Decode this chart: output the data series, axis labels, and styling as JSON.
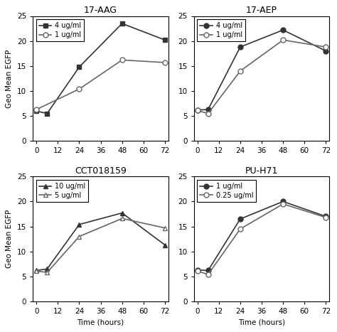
{
  "panels": [
    {
      "title": "17-AAG",
      "x": [
        0,
        6,
        24,
        48,
        72
      ],
      "series": [
        {
          "label": "4 ug/ml",
          "y": [
            6.0,
            5.5,
            14.8,
            23.5,
            20.2
          ],
          "marker": "s",
          "filled": true,
          "color": "#333333"
        },
        {
          "label": "1 ug/ml",
          "y": [
            6.3,
            null,
            10.4,
            16.2,
            15.7
          ],
          "marker": "o",
          "filled": false,
          "color": "#666666"
        }
      ]
    },
    {
      "title": "17-AEP",
      "x": [
        0,
        6,
        24,
        48,
        72
      ],
      "series": [
        {
          "label": "4 ug/ml",
          "y": [
            6.2,
            6.3,
            18.8,
            22.2,
            18.0
          ],
          "marker": "o",
          "filled": true,
          "color": "#333333"
        },
        {
          "label": "1 ug/ml",
          "y": [
            6.1,
            5.5,
            14.0,
            20.2,
            18.8
          ],
          "marker": "o",
          "filled": false,
          "color": "#666666"
        }
      ]
    },
    {
      "title": "CCT018159",
      "x": [
        0,
        6,
        24,
        48,
        72
      ],
      "series": [
        {
          "label": "10 ug/ml",
          "y": [
            6.2,
            6.5,
            15.4,
            17.7,
            11.3
          ],
          "marker": "^",
          "filled": true,
          "color": "#333333"
        },
        {
          "label": "5 ug/ml",
          "y": [
            6.1,
            5.8,
            13.0,
            16.6,
            14.7
          ],
          "marker": "^",
          "filled": false,
          "color": "#666666"
        }
      ]
    },
    {
      "title": "PU-H71",
      "x": [
        0,
        6,
        24,
        48,
        72
      ],
      "series": [
        {
          "label": "1 ug/ml",
          "y": [
            6.3,
            6.2,
            16.5,
            20.0,
            17.0
          ],
          "marker": "o",
          "filled": true,
          "color": "#333333"
        },
        {
          "label": "0.25 ug/ml",
          "y": [
            6.1,
            5.4,
            14.5,
            19.5,
            16.8
          ],
          "marker": "o",
          "filled": false,
          "color": "#666666"
        }
      ]
    }
  ],
  "ylim": [
    0,
    25
  ],
  "yticks": [
    0,
    5,
    10,
    15,
    20,
    25
  ],
  "xticks": [
    0,
    12,
    24,
    36,
    48,
    60,
    72
  ],
  "xlabel": "Time (hours)",
  "ylabel": "Geo Mean EGFP",
  "background_color": "#ffffff"
}
